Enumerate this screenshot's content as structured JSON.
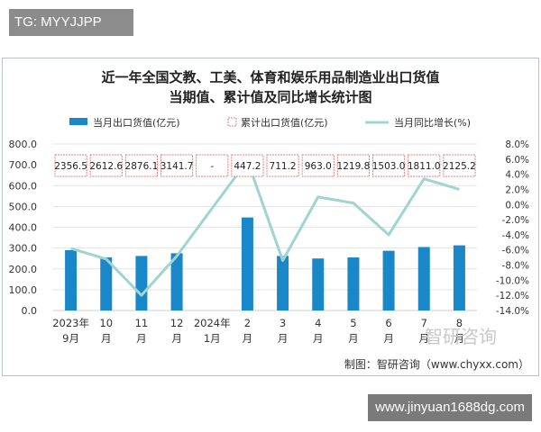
{
  "tag": "TG: MYYJJPP",
  "watermark_url": "www.jinyuan1688dg.com",
  "brand_mark": "智研咨询",
  "source": "制图：智研咨询（www.chyxx.com）",
  "colors": {
    "bar": "#1a87c9",
    "line": "#9fd4cf",
    "label_border": "#e57d7d",
    "grid": "#e3e3e3"
  },
  "chart_data": {
    "type": "bar",
    "title": [
      "近一年全国文教、工美、体育和娱乐用品制造业出口货值",
      "当期值、累计值及同比增长统计图"
    ],
    "legend": {
      "placement": "top",
      "bar_series": "当月出口货值(亿元)",
      "box_series": "累计出口货值(亿元)",
      "line_series": "当月同比增长(%)"
    },
    "categories": [
      [
        "2023年",
        "9月"
      ],
      [
        "10",
        "月"
      ],
      [
        "11",
        "月"
      ],
      [
        "12",
        "月"
      ],
      [
        "2024年",
        "1月"
      ],
      [
        "2",
        "月"
      ],
      [
        "3",
        "月"
      ],
      [
        "4",
        "月"
      ],
      [
        "5",
        "月"
      ],
      [
        "6",
        "月"
      ],
      [
        "7",
        "月"
      ],
      [
        "8",
        "月"
      ]
    ],
    "monthly_value": [
      290,
      255,
      262,
      275,
      null,
      447,
      262,
      250,
      255,
      287,
      305,
      313
    ],
    "cumulative_labels": [
      "2356.5",
      "2612.6",
      "2876.1",
      "3141.7",
      "-",
      "447.2",
      "711.2",
      "963.0",
      "1219.8",
      "1503.0",
      "1811.0",
      "2125.2"
    ],
    "yoy_growth": [
      -5.8,
      -7.2,
      -12.0,
      -6.8,
      null,
      5.8,
      -7.4,
      1.0,
      0.2,
      -4.0,
      3.4,
      2.0
    ],
    "y_left": {
      "min": 0,
      "max": 800,
      "ticks": [
        "0.0",
        "100.0",
        "200.0",
        "300.0",
        "400.0",
        "500.0",
        "600.0",
        "700.0",
        "800.0"
      ]
    },
    "y_right": {
      "min": -14,
      "max": 8,
      "ticks": [
        "-14.0%",
        "-12.0%",
        "-10.0%",
        "-8.0%",
        "-6.0%",
        "-4.0%",
        "-2.0%",
        "0.0%",
        "2.0%",
        "4.0%",
        "6.0%",
        "8.0%"
      ]
    }
  }
}
